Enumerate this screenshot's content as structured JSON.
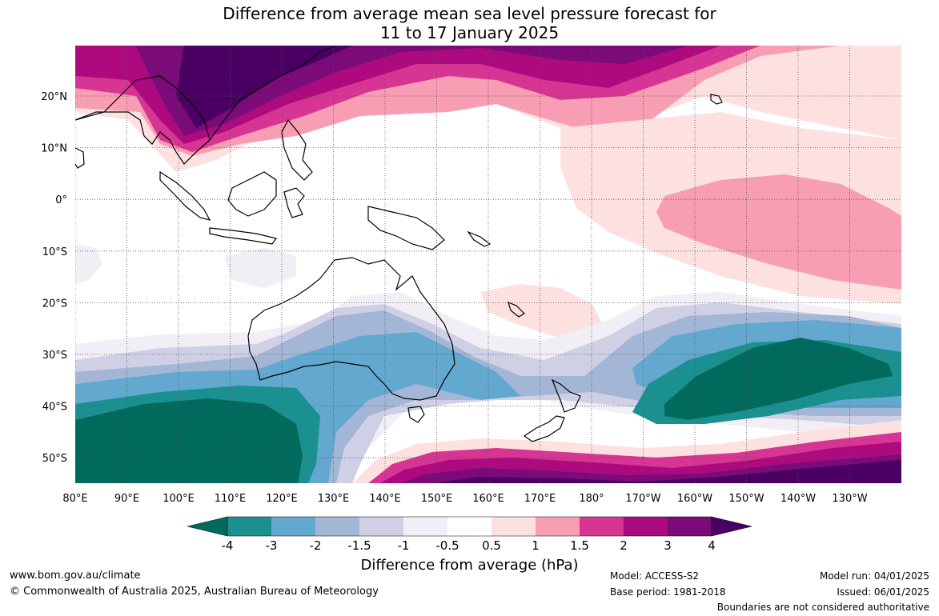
{
  "title_line1": "Difference from average mean sea level pressure forecast for",
  "title_line2": "11 to 17 January 2025",
  "lon_labels": [
    "80°E",
    "90°E",
    "100°E",
    "110°E",
    "120°E",
    "130°E",
    "140°E",
    "150°E",
    "160°E",
    "170°E",
    "180°",
    "170°W",
    "160°W",
    "150°W",
    "140°W",
    "130°W"
  ],
  "lat_labels": [
    "20°N",
    "10°N",
    "0°",
    "10°S",
    "20°S",
    "30°S",
    "40°S",
    "50°S"
  ],
  "colorbar": {
    "ticks": [
      "-4",
      "-3",
      "-2",
      "-1.5",
      "-1",
      "-0.5",
      "0.5",
      "1",
      "1.5",
      "2",
      "3",
      "4"
    ],
    "colors": [
      "#006b5c",
      "#1a9090",
      "#63a8cf",
      "#a3b6d6",
      "#cfd0e6",
      "#f2eef5",
      "#ffffff",
      "#fde0e0",
      "#f79db4",
      "#d73593",
      "#ad0a7f",
      "#7a0b78",
      "#4a0063"
    ],
    "label": "Difference from average (hPa)"
  },
  "footer": {
    "website": "www.bom.gov.au/climate",
    "copyright": "© Commonwealth of Australia 2025, Australian Bureau of Meteorology",
    "model": "Model: ACCESS-S2",
    "base_period": "Base period: 1981-2018",
    "model_run": "Model run: 04/01/2025",
    "issued": "Issued: 06/01/2025",
    "disclaimer": "Boundaries are not considered authoritative"
  }
}
